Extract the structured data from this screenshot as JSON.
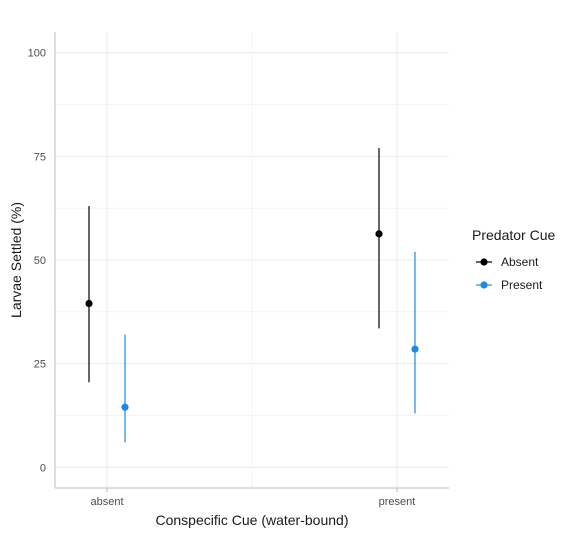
{
  "chart_data": {
    "type": "scatter",
    "subtype": "point-with-errorbars",
    "title": "",
    "xlabel": "Conspecific Cue (water-bound)",
    "ylabel": "Larvae Settled (%)",
    "categories": [
      "absent",
      "present"
    ],
    "ylim": [
      -5,
      105
    ],
    "yticks": [
      0,
      25,
      50,
      75,
      100
    ],
    "grid": true,
    "legend": {
      "title": "Predator Cue",
      "placement": "right"
    },
    "series": [
      {
        "name": "Absent",
        "color": "#000000",
        "points": [
          {
            "x": "absent",
            "y": 39.5,
            "lower": 20.5,
            "upper": 63
          },
          {
            "x": "present",
            "y": 56.3,
            "lower": 33.5,
            "upper": 77
          }
        ]
      },
      {
        "name": "Present",
        "color": "#1E88E5",
        "points": [
          {
            "x": "absent",
            "y": 14.5,
            "lower": 6,
            "upper": 32
          },
          {
            "x": "present",
            "y": 28.5,
            "lower": 13,
            "upper": 52
          }
        ]
      }
    ]
  }
}
